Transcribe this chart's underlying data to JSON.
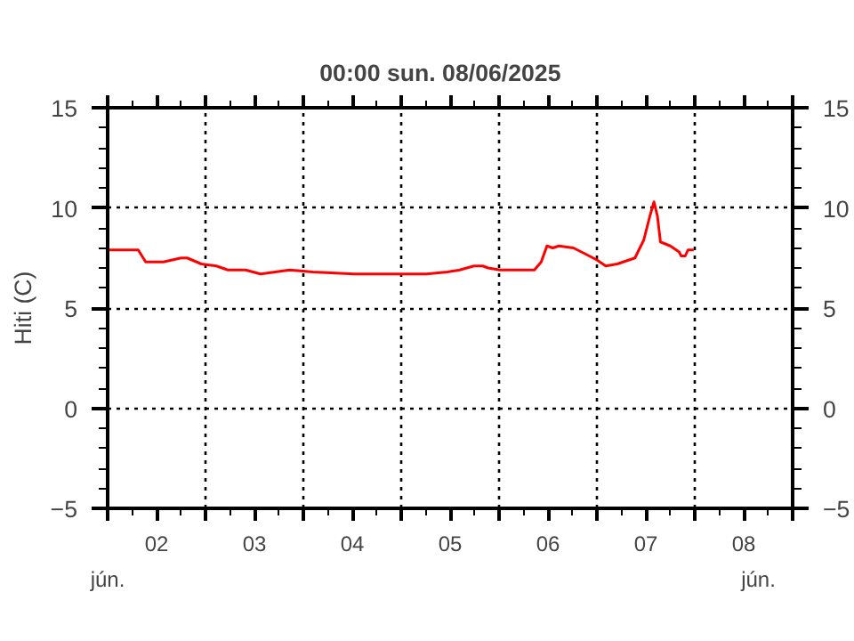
{
  "chart_data": {
    "type": "line",
    "title": "00:00   sun.  08/06/2025",
    "ylabel": "Hiti (C)",
    "annotations": [
      "jún.",
      "jún."
    ],
    "x": [
      "2025-06-02T00:00",
      "2025-06-02T07:30",
      "2025-06-02T09:20",
      "2025-06-02T13:40",
      "2025-06-02T18:00",
      "2025-06-02T19:30",
      "2025-06-02T23:00",
      "2025-06-03T02:40",
      "2025-06-03T05:30",
      "2025-06-03T09:50",
      "2025-06-03T13:30",
      "2025-06-03T20:40",
      "2025-06-04T02:20",
      "2025-06-04T12:30",
      "2025-06-05T04:20",
      "2025-06-05T06:10",
      "2025-06-05T11:20",
      "2025-06-05T14:20",
      "2025-06-05T17:50",
      "2025-06-05T20:00",
      "2025-06-05T21:20",
      "2025-06-06T00:15",
      "2025-06-06T08:40",
      "2025-06-06T10:20",
      "2025-06-06T11:45",
      "2025-06-06T13:10",
      "2025-06-06T14:40",
      "2025-06-06T18:15",
      "2025-06-06T21:10",
      "2025-06-07T00:00",
      "2025-06-07T02:10",
      "2025-06-07T05:00",
      "2025-06-07T09:20",
      "2025-06-07T11:30",
      "2025-06-07T13:00",
      "2025-06-07T14:00",
      "2025-06-07T14:50",
      "2025-06-07T15:35",
      "2025-06-07T18:00",
      "2025-06-07T20:10",
      "2025-06-07T20:40",
      "2025-06-07T21:40",
      "2025-06-07T22:20",
      "2025-06-07T23:45"
    ],
    "series": [
      {
        "color": "#ff0000",
        "values": [
          7.9,
          7.9,
          7.3,
          7.3,
          7.5,
          7.5,
          7.2,
          7.1,
          6.9,
          6.9,
          6.7,
          6.9,
          6.8,
          6.7,
          6.7,
          6.7,
          6.8,
          6.9,
          7.1,
          7.1,
          7.0,
          6.9,
          6.9,
          7.3,
          8.1,
          8.0,
          8.1,
          8.0,
          7.7,
          7.4,
          7.1,
          7.2,
          7.5,
          8.4,
          9.6,
          10.3,
          9.6,
          8.3,
          8.1,
          7.8,
          7.6,
          7.6,
          7.9,
          7.9
        ]
      }
    ],
    "xlim": [
      "2025-06-02T00:00",
      "2025-06-09T00:00"
    ],
    "xticks": [
      {
        "value": "2025-06-02T00:00",
        "label": null
      },
      {
        "value": "2025-06-02T12:00",
        "label": "02"
      },
      {
        "value": "2025-06-03T00:00",
        "label": null
      },
      {
        "value": "2025-06-03T12:00",
        "label": "03"
      },
      {
        "value": "2025-06-04T00:00",
        "label": null
      },
      {
        "value": "2025-06-04T12:00",
        "label": "04"
      },
      {
        "value": "2025-06-05T00:00",
        "label": null
      },
      {
        "value": "2025-06-05T12:00",
        "label": "05"
      },
      {
        "value": "2025-06-06T00:00",
        "label": null
      },
      {
        "value": "2025-06-06T12:00",
        "label": "06"
      },
      {
        "value": "2025-06-07T00:00",
        "label": null
      },
      {
        "value": "2025-06-07T12:00",
        "label": "07"
      },
      {
        "value": "2025-06-08T00:00",
        "label": null
      },
      {
        "value": "2025-06-08T12:00",
        "label": "08"
      },
      {
        "value": "2025-06-09T00:00",
        "label": null
      }
    ],
    "ylim": [
      -5,
      15
    ],
    "yticks": [
      -5,
      0,
      5,
      10,
      15
    ],
    "y2lim": [
      -5,
      15
    ],
    "y2ticks": [
      -5,
      0,
      5,
      10,
      15
    ],
    "grid": true,
    "marker": "none",
    "line_style": "solid"
  }
}
